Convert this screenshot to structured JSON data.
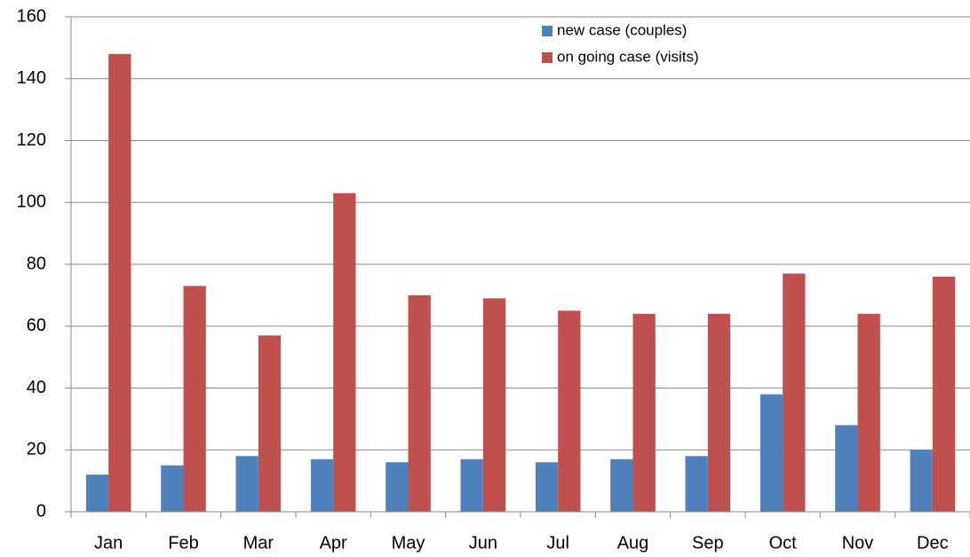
{
  "chart_data": {
    "type": "bar",
    "categories": [
      "Jan",
      "Feb",
      "Mar",
      "Apr",
      "May",
      "Jun",
      "Jul",
      "Aug",
      "Sep",
      "Oct",
      "Nov",
      "Dec"
    ],
    "series": [
      {
        "name": "new case (couples)",
        "color": "#4f81bd",
        "values": [
          12,
          15,
          18,
          17,
          16,
          17,
          16,
          17,
          18,
          38,
          28,
          20
        ]
      },
      {
        "name": "on going case (visits)",
        "color": "#c0504d",
        "values": [
          148,
          73,
          57,
          103,
          70,
          69,
          65,
          64,
          64,
          77,
          64,
          76
        ]
      }
    ],
    "ylim": [
      0,
      160
    ],
    "yticks": [
      0,
      20,
      40,
      60,
      80,
      100,
      120,
      140,
      160
    ],
    "grid": true,
    "legend": "top"
  }
}
